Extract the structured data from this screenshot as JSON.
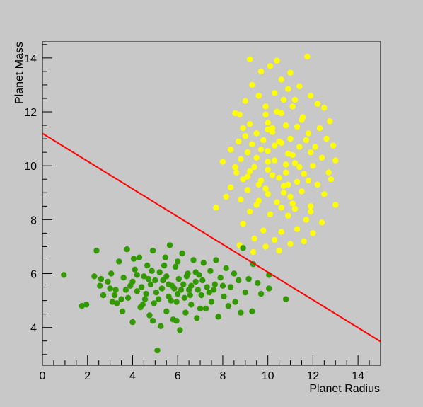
{
  "chart_data": {
    "type": "scatter",
    "title": "",
    "xlabel": "Planet Radius",
    "ylabel": "Planet Mass",
    "xlim": [
      0,
      15
    ],
    "ylim": [
      2.6,
      14.6
    ],
    "xticks": [
      "0",
      "2",
      "4",
      "6",
      "8",
      "10",
      "12",
      "14"
    ],
    "yticks": [
      "4",
      "6",
      "8",
      "10",
      "12",
      "14"
    ],
    "grid": false,
    "legend": "none",
    "series": [
      {
        "color": "#ffff00",
        "points": [
          [
            9.2,
            13.95
          ],
          [
            10.4,
            13.9
          ],
          [
            11.75,
            14.05
          ],
          [
            10.1,
            13.7
          ],
          [
            9.7,
            13.5
          ],
          [
            11.0,
            13.45
          ],
          [
            10.6,
            13.2
          ],
          [
            9.3,
            13.0
          ],
          [
            11.4,
            12.95
          ],
          [
            10.9,
            12.85
          ],
          [
            9.6,
            12.6
          ],
          [
            10.3,
            12.7
          ],
          [
            11.9,
            12.6
          ],
          [
            12.2,
            12.3
          ],
          [
            9.0,
            12.4
          ],
          [
            10.7,
            12.45
          ],
          [
            11.1,
            12.2
          ],
          [
            12.5,
            12.15
          ],
          [
            8.55,
            11.95
          ],
          [
            8.75,
            11.9
          ],
          [
            9.9,
            11.9
          ],
          [
            10.4,
            12.0
          ],
          [
            11.55,
            11.8
          ],
          [
            12.75,
            11.65
          ],
          [
            9.2,
            11.55
          ],
          [
            8.9,
            11.4
          ],
          [
            10.0,
            11.6
          ],
          [
            10.8,
            11.5
          ],
          [
            11.3,
            11.45
          ],
          [
            12.3,
            11.4
          ],
          [
            9.5,
            11.2
          ],
          [
            10.2,
            11.25
          ],
          [
            11.0,
            11.0
          ],
          [
            11.8,
            11.2
          ],
          [
            12.6,
            11.0
          ],
          [
            8.7,
            10.9
          ],
          [
            9.3,
            10.8
          ],
          [
            9.8,
            10.95
          ],
          [
            10.6,
            10.85
          ],
          [
            11.4,
            10.7
          ],
          [
            12.9,
            10.75
          ],
          [
            8.35,
            10.6
          ],
          [
            9.1,
            10.5
          ],
          [
            10.0,
            10.55
          ],
          [
            10.9,
            10.45
          ],
          [
            11.9,
            10.5
          ],
          [
            12.4,
            10.3
          ],
          [
            8.8,
            10.25
          ],
          [
            9.5,
            10.3
          ],
          [
            10.3,
            10.2
          ],
          [
            11.2,
            10.1
          ],
          [
            12.0,
            10.0
          ],
          [
            13.0,
            10.2
          ],
          [
            8.0,
            10.15
          ],
          [
            8.55,
            9.95
          ],
          [
            9.2,
            9.8
          ],
          [
            10.0,
            9.85
          ],
          [
            10.8,
            9.75
          ],
          [
            11.6,
            9.7
          ],
          [
            12.7,
            9.75
          ],
          [
            8.9,
            9.5
          ],
          [
            9.7,
            9.45
          ],
          [
            10.5,
            9.55
          ],
          [
            11.3,
            9.4
          ],
          [
            12.2,
            9.3
          ],
          [
            8.35,
            9.2
          ],
          [
            9.1,
            9.1
          ],
          [
            9.9,
            9.15
          ],
          [
            10.7,
            9.0
          ],
          [
            11.5,
            9.05
          ],
          [
            12.5,
            8.95
          ],
          [
            8.15,
            8.85
          ],
          [
            8.8,
            8.75
          ],
          [
            9.6,
            8.7
          ],
          [
            10.4,
            8.65
          ],
          [
            11.1,
            8.6
          ],
          [
            11.9,
            8.5
          ],
          [
            13.0,
            8.55
          ],
          [
            7.7,
            8.45
          ],
          [
            9.2,
            8.3
          ],
          [
            10.1,
            8.2
          ],
          [
            10.9,
            8.15
          ],
          [
            11.7,
            8.0
          ],
          [
            12.4,
            7.9
          ],
          [
            8.9,
            7.85
          ],
          [
            9.8,
            7.6
          ],
          [
            10.6,
            7.55
          ],
          [
            11.3,
            7.65
          ],
          [
            12.0,
            7.5
          ],
          [
            9.4,
            7.3
          ],
          [
            10.3,
            7.25
          ],
          [
            11.0,
            7.1
          ],
          [
            11.6,
            7.2
          ],
          [
            8.75,
            7.05
          ],
          [
            9.9,
            7.0
          ],
          [
            10.5,
            6.85
          ],
          [
            9.35,
            6.8
          ],
          [
            10.2,
            11.4
          ],
          [
            10.5,
            10.9
          ],
          [
            9.7,
            10.6
          ],
          [
            11.1,
            10.4
          ],
          [
            10.0,
            10.15
          ],
          [
            10.8,
            10.05
          ],
          [
            9.4,
            9.95
          ],
          [
            11.4,
            9.95
          ],
          [
            10.2,
            9.65
          ],
          [
            9.6,
            9.3
          ],
          [
            10.9,
            9.3
          ],
          [
            11.8,
            9.45
          ],
          [
            10.0,
            8.95
          ],
          [
            11.0,
            8.85
          ],
          [
            9.5,
            8.55
          ],
          [
            10.6,
            8.45
          ],
          [
            11.5,
            11.7
          ],
          [
            10.6,
            11.95
          ],
          [
            9.9,
            12.2
          ],
          [
            11.2,
            12.45
          ],
          [
            10.0,
            11.35
          ],
          [
            11.7,
            10.95
          ],
          [
            12.1,
            10.7
          ],
          [
            8.6,
            9.75
          ],
          [
            12.8,
            9.5
          ],
          [
            9.0,
            11.1
          ],
          [
            11.9,
            8.3
          ],
          [
            10.3,
            10.75
          ],
          [
            9.1,
            9.6
          ],
          [
            10.7,
            9.25
          ],
          [
            11.2,
            8.4
          ]
        ]
      },
      {
        "color": "#339900",
        "points": [
          [
            0.95,
            5.95
          ],
          [
            1.75,
            4.8
          ],
          [
            1.95,
            4.85
          ],
          [
            2.4,
            6.85
          ],
          [
            2.3,
            5.9
          ],
          [
            2.55,
            5.55
          ],
          [
            2.7,
            5.2
          ],
          [
            2.9,
            5.7
          ],
          [
            3.05,
            6.0
          ],
          [
            3.1,
            4.95
          ],
          [
            3.25,
            5.4
          ],
          [
            3.4,
            6.45
          ],
          [
            3.55,
            4.6
          ],
          [
            3.6,
            5.85
          ],
          [
            3.75,
            6.9
          ],
          [
            3.8,
            5.1
          ],
          [
            3.9,
            5.55
          ],
          [
            4.0,
            4.2
          ],
          [
            4.1,
            6.15
          ],
          [
            4.2,
            5.35
          ],
          [
            4.3,
            6.6
          ],
          [
            4.35,
            4.75
          ],
          [
            4.5,
            5.9
          ],
          [
            4.55,
            5.05
          ],
          [
            4.65,
            6.3
          ],
          [
            4.75,
            4.45
          ],
          [
            4.8,
            5.6
          ],
          [
            4.9,
            6.85
          ],
          [
            4.95,
            4.9
          ],
          [
            5.05,
            5.3
          ],
          [
            5.1,
            3.15
          ],
          [
            5.2,
            6.05
          ],
          [
            5.25,
            4.05
          ],
          [
            5.35,
            5.75
          ],
          [
            5.45,
            6.6
          ],
          [
            5.5,
            4.6
          ],
          [
            5.6,
            5.15
          ],
          [
            5.65,
            7.05
          ],
          [
            5.75,
            5.55
          ],
          [
            5.8,
            4.3
          ],
          [
            5.9,
            6.25
          ],
          [
            5.95,
            4.95
          ],
          [
            6.05,
            5.8
          ],
          [
            6.1,
            3.9
          ],
          [
            6.2,
            6.75
          ],
          [
            6.3,
            5.1
          ],
          [
            6.35,
            4.55
          ],
          [
            6.45,
            6.0
          ],
          [
            6.5,
            5.4
          ],
          [
            6.6,
            4.85
          ],
          [
            6.7,
            6.5
          ],
          [
            6.8,
            5.7
          ],
          [
            6.85,
            4.35
          ],
          [
            6.95,
            5.95
          ],
          [
            7.05,
            5.2
          ],
          [
            7.15,
            6.4
          ],
          [
            7.25,
            4.7
          ],
          [
            7.3,
            5.5
          ],
          [
            7.45,
            6.1
          ],
          [
            7.5,
            4.95
          ],
          [
            7.65,
            5.6
          ],
          [
            7.7,
            6.5
          ],
          [
            7.8,
            4.4
          ],
          [
            7.9,
            5.85
          ],
          [
            8.05,
            5.15
          ],
          [
            8.15,
            6.2
          ],
          [
            8.25,
            4.8
          ],
          [
            8.35,
            5.5
          ],
          [
            8.5,
            6.0
          ],
          [
            8.55,
            4.95
          ],
          [
            8.7,
            5.75
          ],
          [
            8.8,
            4.55
          ],
          [
            8.9,
            6.95
          ],
          [
            9.0,
            5.3
          ],
          [
            9.15,
            5.8
          ],
          [
            9.3,
            4.6
          ],
          [
            9.35,
            6.35
          ],
          [
            9.55,
            5.65
          ],
          [
            9.7,
            5.25
          ],
          [
            10.05,
            5.45
          ],
          [
            10.05,
            5.95
          ],
          [
            10.8,
            5.05
          ],
          [
            3.2,
            5.2
          ],
          [
            3.5,
            5.05
          ],
          [
            4.0,
            5.7
          ],
          [
            4.4,
            5.5
          ],
          [
            4.6,
            5.25
          ],
          [
            4.85,
            6.1
          ],
          [
            5.0,
            5.75
          ],
          [
            5.3,
            5.45
          ],
          [
            5.5,
            5.9
          ],
          [
            5.7,
            5.0
          ],
          [
            5.85,
            5.45
          ],
          [
            6.0,
            5.25
          ],
          [
            6.25,
            5.6
          ],
          [
            6.4,
            5.9
          ],
          [
            6.6,
            5.55
          ],
          [
            6.9,
            5.4
          ],
          [
            7.1,
            5.75
          ],
          [
            7.4,
            5.3
          ],
          [
            4.2,
            5.95
          ],
          [
            4.7,
            5.8
          ],
          [
            5.15,
            5.05
          ],
          [
            5.6,
            5.6
          ],
          [
            6.15,
            5.4
          ],
          [
            6.55,
            5.2
          ],
          [
            3.7,
            5.4
          ],
          [
            4.45,
            4.85
          ],
          [
            5.4,
            6.3
          ],
          [
            6.0,
            6.45
          ],
          [
            6.8,
            6.05
          ],
          [
            7.6,
            5.4
          ],
          [
            3.0,
            5.45
          ],
          [
            2.6,
            5.8
          ],
          [
            4.9,
            4.25
          ],
          [
            5.95,
            4.25
          ],
          [
            7.0,
            4.7
          ],
          [
            8.0,
            5.55
          ],
          [
            3.3,
            4.9
          ],
          [
            4.05,
            6.55
          ]
        ]
      }
    ],
    "line": {
      "color": "#ff0000",
      "points": [
        [
          0.0,
          11.2
        ],
        [
          15.0,
          3.48
        ]
      ]
    }
  }
}
